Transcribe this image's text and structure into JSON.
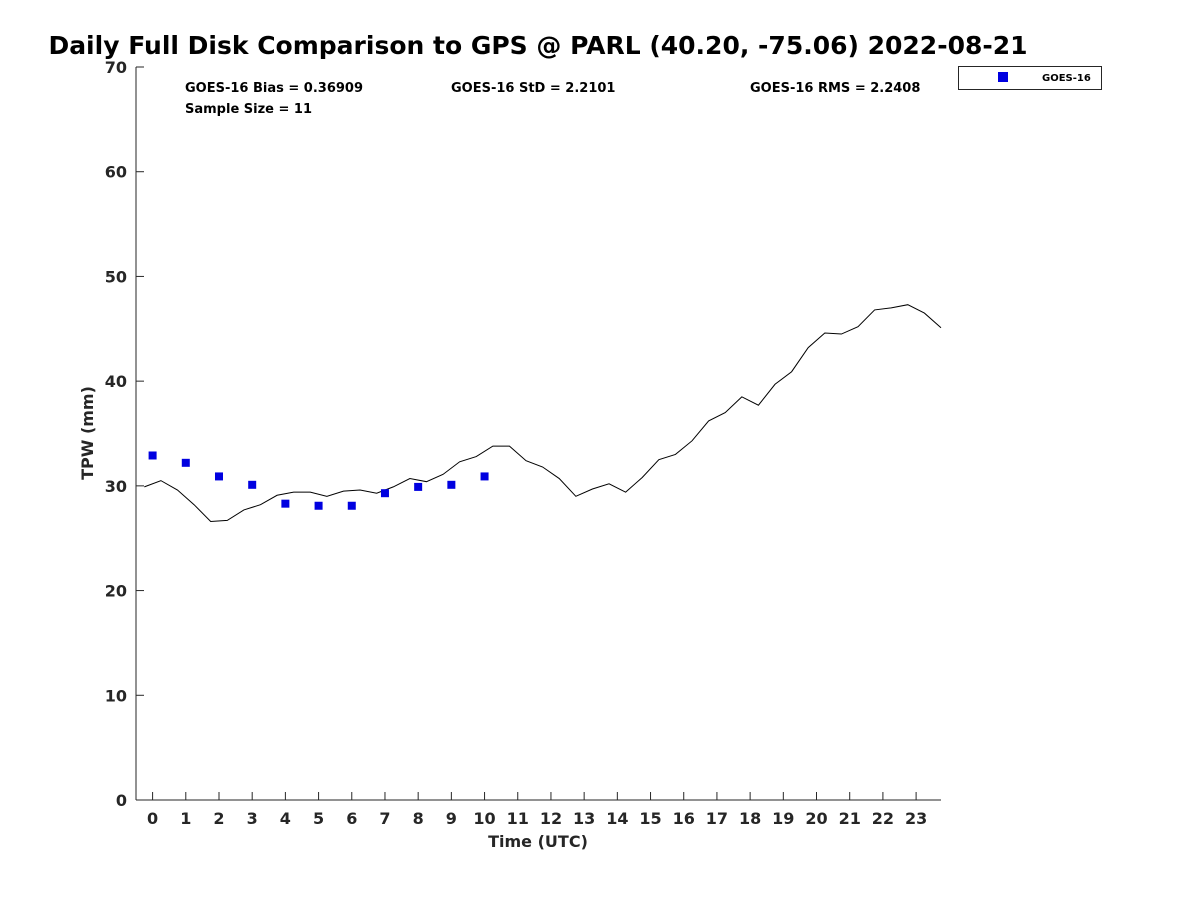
{
  "chart_data": {
    "type": "scatter",
    "title": "Daily Full Disk Comparison to GPS @ PARL (40.20, -75.06) 2022-08-21",
    "xlabel": "Time (UTC)",
    "ylabel": "TPW (mm)",
    "xlim": [
      -0.5,
      23.75
    ],
    "ylim": [
      0,
      70
    ],
    "x_ticks": [
      0,
      1,
      2,
      3,
      4,
      5,
      6,
      7,
      8,
      9,
      10,
      11,
      12,
      13,
      14,
      15,
      16,
      17,
      18,
      19,
      20,
      21,
      22,
      23
    ],
    "y_ticks": [
      0,
      10,
      20,
      30,
      40,
      50,
      60,
      70
    ],
    "grid": false,
    "legend_position": "top-right",
    "stats": {
      "bias": "GOES-16 Bias = 0.36909",
      "std": "GOES-16 StD = 2.2101",
      "rms": "GOES-16 RMS = 2.2408",
      "sample_size": "Sample Size = 11"
    },
    "series": [
      {
        "name": "GOES-16",
        "kind": "scatter",
        "marker": "square",
        "color": "#0000e0",
        "x": [
          0,
          1,
          2,
          3,
          4,
          5,
          6,
          7,
          8,
          9,
          10
        ],
        "y": [
          32.9,
          32.2,
          30.9,
          30.1,
          28.3,
          28.1,
          28.1,
          29.3,
          29.9,
          30.1,
          30.9
        ]
      },
      {
        "kind": "line",
        "color": "#000000",
        "x": [
          -0.25,
          0.25,
          0.75,
          1.25,
          1.75,
          2.25,
          2.75,
          3.25,
          3.75,
          4.25,
          4.75,
          5.25,
          5.75,
          6.25,
          6.75,
          7.25,
          7.75,
          8.25,
          8.75,
          9.25,
          9.75,
          10.25,
          10.75,
          11.25,
          11.75,
          12.25,
          12.75,
          13.25,
          13.75,
          14.25,
          14.75,
          15.25,
          15.75,
          16.25,
          16.75,
          17.25,
          17.75,
          18.25,
          18.75,
          19.25,
          19.75,
          20.25,
          20.75,
          21.25,
          21.75,
          22.25,
          22.75,
          23.25,
          23.75
        ],
        "y": [
          29.9,
          30.5,
          29.6,
          28.2,
          26.6,
          26.7,
          27.7,
          28.2,
          29.1,
          29.4,
          29.4,
          29.0,
          29.5,
          29.6,
          29.3,
          29.9,
          30.7,
          30.4,
          31.1,
          32.3,
          32.8,
          33.8,
          33.8,
          32.4,
          31.8,
          30.7,
          29.0,
          29.7,
          30.2,
          29.4,
          30.8,
          32.5,
          33.0,
          34.3,
          36.2,
          37.0,
          38.5,
          37.7,
          39.7,
          40.9,
          43.2,
          44.6,
          44.5,
          45.2,
          46.8,
          47.0,
          47.3,
          46.5,
          45.1
        ]
      }
    ]
  }
}
